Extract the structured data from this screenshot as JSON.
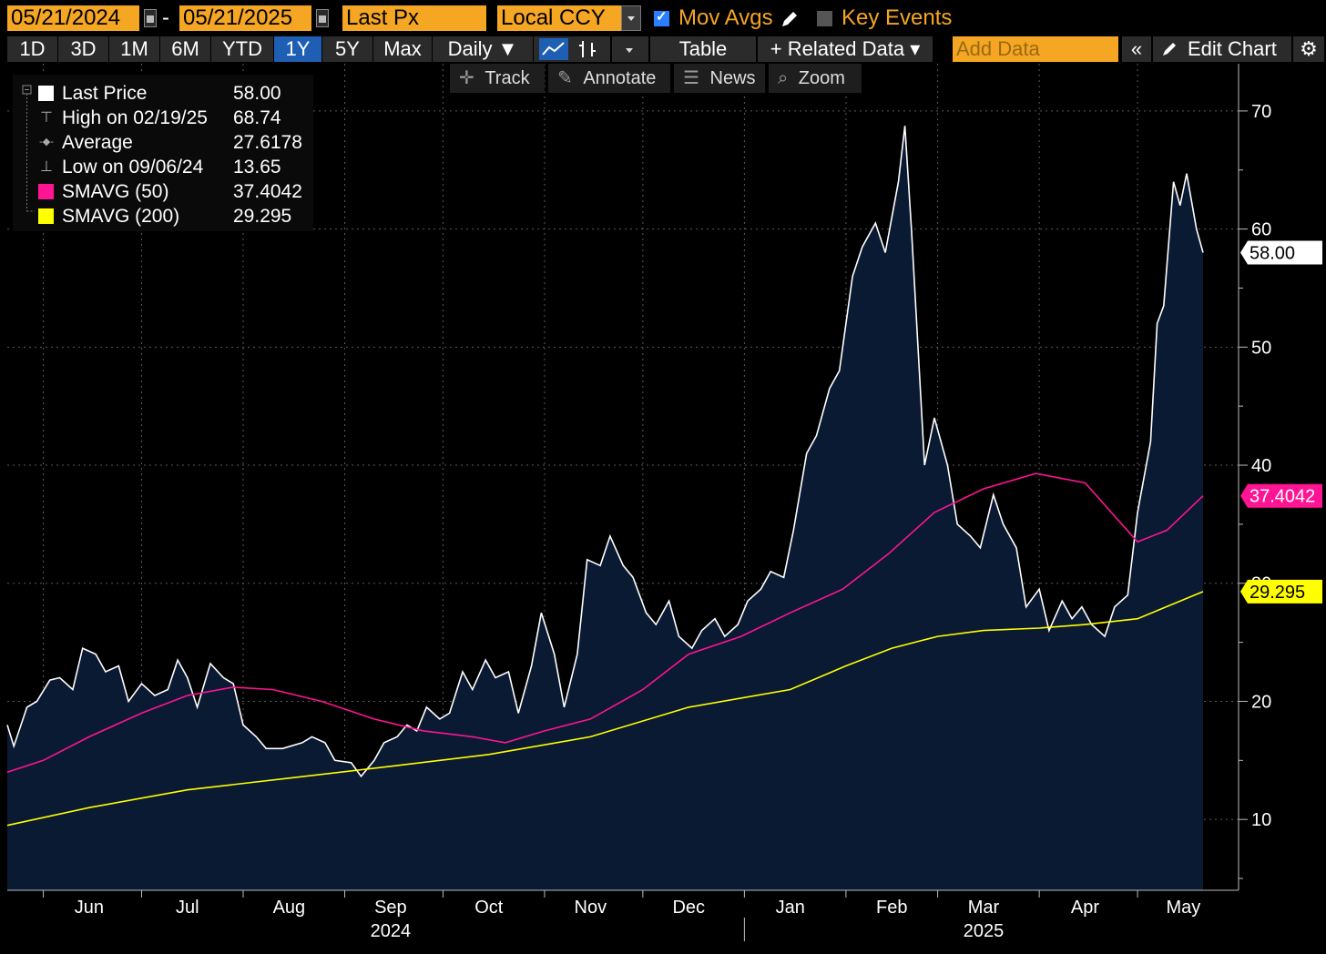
{
  "toolbar": {
    "start_date": "05/21/2024",
    "date_separator": "-",
    "end_date": "05/21/2025",
    "field": "Last Px",
    "currency": "Local CCY",
    "mov_avgs_label": "Mov Avgs",
    "key_events_label": "Key Events",
    "periods": [
      "1D",
      "3D",
      "1M",
      "6M",
      "YTD",
      "1Y",
      "5Y",
      "Max"
    ],
    "active_period": "1Y",
    "frequency": "Daily ▼",
    "table_label": "Table",
    "related_data_label": "+ Related Data ▾",
    "add_data_placeholder": "Add Data",
    "edit_chart_label": "Edit Chart",
    "collapse_icon": "double-chevron-left-icon",
    "settings_icon": "gear-icon"
  },
  "chart_tools": {
    "track": "Track",
    "annotate": "Annotate",
    "news": "News",
    "zoom": "Zoom"
  },
  "legend": [
    {
      "name": "Last Price",
      "value": "58.00",
      "swatch": "#ffffff"
    },
    {
      "name": "High on 02/19/25",
      "value": "68.74",
      "glyph": "⊤"
    },
    {
      "name": "Average",
      "value": "27.6178",
      "glyph": "-◆-"
    },
    {
      "name": "Low on 09/06/24",
      "value": "13.65",
      "glyph": "⊥"
    },
    {
      "name": "SMAVG (50)",
      "value": "37.4042",
      "swatch": "#ff1493"
    },
    {
      "name": "SMAVG (200)",
      "value": "29.295",
      "swatch": "#ffff00"
    }
  ],
  "chart_data": {
    "type": "line",
    "ylim": [
      4,
      74
    ],
    "y_ticks": [
      10,
      20,
      30,
      40,
      50,
      60,
      70
    ],
    "x_range": [
      "2024-05-21",
      "2025-05-21"
    ],
    "month_labels": [
      {
        "label": "Jun",
        "date": "2024-06-15"
      },
      {
        "label": "Jul",
        "date": "2024-07-15"
      },
      {
        "label": "Aug",
        "date": "2024-08-15"
      },
      {
        "label": "Sep",
        "date": "2024-09-15"
      },
      {
        "label": "Oct",
        "date": "2024-10-15"
      },
      {
        "label": "Nov",
        "date": "2024-11-15"
      },
      {
        "label": "Dec",
        "date": "2024-12-15"
      },
      {
        "label": "Jan",
        "date": "2025-01-15"
      },
      {
        "label": "Feb",
        "date": "2025-02-15"
      },
      {
        "label": "Mar",
        "date": "2025-03-15"
      },
      {
        "label": "Apr",
        "date": "2025-04-15"
      },
      {
        "label": "May",
        "date": "2025-05-15"
      }
    ],
    "year_labels": [
      {
        "label": "2024",
        "date": "2024-09-15"
      },
      {
        "label": "2025",
        "date": "2025-03-15"
      }
    ],
    "year_divider_date": "2025-01-01",
    "grid": true,
    "series": [
      {
        "name": "Last Price",
        "color": "#ffffff",
        "fill": "#0b1a33",
        "points": [
          [
            "2024-05-21",
            18.0
          ],
          [
            "2024-05-23",
            16.2
          ],
          [
            "2024-05-27",
            19.5
          ],
          [
            "2024-05-30",
            20.0
          ],
          [
            "2024-06-03",
            21.8
          ],
          [
            "2024-06-06",
            22.0
          ],
          [
            "2024-06-10",
            21.0
          ],
          [
            "2024-06-13",
            24.5
          ],
          [
            "2024-06-17",
            24.0
          ],
          [
            "2024-06-20",
            22.5
          ],
          [
            "2024-06-24",
            23.0
          ],
          [
            "2024-06-27",
            20.0
          ],
          [
            "2024-07-01",
            21.5
          ],
          [
            "2024-07-05",
            20.5
          ],
          [
            "2024-07-09",
            21.0
          ],
          [
            "2024-07-12",
            23.5
          ],
          [
            "2024-07-15",
            22.0
          ],
          [
            "2024-07-18",
            19.5
          ],
          [
            "2024-07-22",
            23.2
          ],
          [
            "2024-07-26",
            22.0
          ],
          [
            "2024-07-29",
            21.5
          ],
          [
            "2024-08-01",
            18.0
          ],
          [
            "2024-08-05",
            17.0
          ],
          [
            "2024-08-08",
            16.0
          ],
          [
            "2024-08-13",
            16.0
          ],
          [
            "2024-08-19",
            16.5
          ],
          [
            "2024-08-22",
            17.0
          ],
          [
            "2024-08-26",
            16.5
          ],
          [
            "2024-08-29",
            15.0
          ],
          [
            "2024-09-03",
            14.8
          ],
          [
            "2024-09-06",
            13.65
          ],
          [
            "2024-09-10",
            15.0
          ],
          [
            "2024-09-13",
            16.5
          ],
          [
            "2024-09-17",
            17.0
          ],
          [
            "2024-09-20",
            18.0
          ],
          [
            "2024-09-23",
            17.5
          ],
          [
            "2024-09-26",
            19.5
          ],
          [
            "2024-09-30",
            18.5
          ],
          [
            "2024-10-03",
            19.0
          ],
          [
            "2024-10-07",
            22.5
          ],
          [
            "2024-10-10",
            21.0
          ],
          [
            "2024-10-14",
            23.5
          ],
          [
            "2024-10-17",
            22.0
          ],
          [
            "2024-10-21",
            22.5
          ],
          [
            "2024-10-24",
            19.0
          ],
          [
            "2024-10-28",
            23.0
          ],
          [
            "2024-10-31",
            27.5
          ],
          [
            "2024-11-04",
            24.0
          ],
          [
            "2024-11-07",
            19.5
          ],
          [
            "2024-11-11",
            24.0
          ],
          [
            "2024-11-14",
            32.0
          ],
          [
            "2024-11-18",
            31.5
          ],
          [
            "2024-11-21",
            34.0
          ],
          [
            "2024-11-25",
            31.5
          ],
          [
            "2024-11-28",
            30.5
          ],
          [
            "2024-12-02",
            27.5
          ],
          [
            "2024-12-05",
            26.5
          ],
          [
            "2024-12-09",
            28.5
          ],
          [
            "2024-12-12",
            25.5
          ],
          [
            "2024-12-16",
            24.5
          ],
          [
            "2024-12-19",
            26.0
          ],
          [
            "2024-12-23",
            27.0
          ],
          [
            "2024-12-26",
            25.5
          ],
          [
            "2024-12-30",
            26.5
          ],
          [
            "2025-01-02",
            28.5
          ],
          [
            "2025-01-06",
            29.5
          ],
          [
            "2025-01-09",
            31.0
          ],
          [
            "2025-01-13",
            30.5
          ],
          [
            "2025-01-16",
            34.5
          ],
          [
            "2025-01-20",
            41.0
          ],
          [
            "2025-01-23",
            42.5
          ],
          [
            "2025-01-27",
            46.5
          ],
          [
            "2025-01-30",
            48.0
          ],
          [
            "2025-02-03",
            56.0
          ],
          [
            "2025-02-06",
            58.5
          ],
          [
            "2025-02-10",
            60.5
          ],
          [
            "2025-02-13",
            58.0
          ],
          [
            "2025-02-17",
            64.0
          ],
          [
            "2025-02-19",
            68.74
          ],
          [
            "2025-02-21",
            60.0
          ],
          [
            "2025-02-25",
            40.0
          ],
          [
            "2025-02-28",
            44.0
          ],
          [
            "2025-03-04",
            40.0
          ],
          [
            "2025-03-07",
            35.0
          ],
          [
            "2025-03-11",
            34.0
          ],
          [
            "2025-03-14",
            33.0
          ],
          [
            "2025-03-18",
            37.5
          ],
          [
            "2025-03-21",
            35.0
          ],
          [
            "2025-03-25",
            33.0
          ],
          [
            "2025-03-28",
            28.0
          ],
          [
            "2025-04-01",
            29.5
          ],
          [
            "2025-04-04",
            26.0
          ],
          [
            "2025-04-08",
            28.5
          ],
          [
            "2025-04-11",
            27.0
          ],
          [
            "2025-04-14",
            28.0
          ],
          [
            "2025-04-17",
            26.5
          ],
          [
            "2025-04-21",
            25.5
          ],
          [
            "2025-04-24",
            28.0
          ],
          [
            "2025-04-28",
            29.0
          ],
          [
            "2025-05-01",
            36.0
          ],
          [
            "2025-05-05",
            42.0
          ],
          [
            "2025-05-07",
            52.0
          ],
          [
            "2025-05-09",
            53.5
          ],
          [
            "2025-05-12",
            64.0
          ],
          [
            "2025-05-14",
            62.0
          ],
          [
            "2025-05-16",
            64.7
          ],
          [
            "2025-05-19",
            60.0
          ],
          [
            "2025-05-21",
            58.0
          ]
        ]
      },
      {
        "name": "SMAVG (50)",
        "color": "#ff1493",
        "points": [
          [
            "2024-05-21",
            14.0
          ],
          [
            "2024-06-01",
            15.0
          ],
          [
            "2024-06-15",
            17.0
          ],
          [
            "2024-07-01",
            19.0
          ],
          [
            "2024-07-15",
            20.5
          ],
          [
            "2024-07-29",
            21.2
          ],
          [
            "2024-08-10",
            21.0
          ],
          [
            "2024-08-25",
            20.0
          ],
          [
            "2024-09-10",
            18.5
          ],
          [
            "2024-09-25",
            17.5
          ],
          [
            "2024-10-10",
            17.0
          ],
          [
            "2024-10-20",
            16.5
          ],
          [
            "2024-11-01",
            17.5
          ],
          [
            "2024-11-15",
            18.5
          ],
          [
            "2024-12-01",
            21.0
          ],
          [
            "2024-12-15",
            24.0
          ],
          [
            "2024-12-31",
            25.5
          ],
          [
            "2025-01-15",
            27.5
          ],
          [
            "2025-01-31",
            29.5
          ],
          [
            "2025-02-14",
            32.5
          ],
          [
            "2025-02-28",
            36.0
          ],
          [
            "2025-03-15",
            38.0
          ],
          [
            "2025-03-31",
            39.3
          ],
          [
            "2025-04-15",
            38.5
          ],
          [
            "2025-05-01",
            33.5
          ],
          [
            "2025-05-10",
            34.5
          ],
          [
            "2025-05-21",
            37.4042
          ]
        ]
      },
      {
        "name": "SMAVG (200)",
        "color": "#ffff00",
        "points": [
          [
            "2024-05-21",
            9.5
          ],
          [
            "2024-06-15",
            11.0
          ],
          [
            "2024-07-15",
            12.5
          ],
          [
            "2024-08-15",
            13.5
          ],
          [
            "2024-09-15",
            14.5
          ],
          [
            "2024-10-15",
            15.5
          ],
          [
            "2024-11-15",
            17.0
          ],
          [
            "2024-12-15",
            19.5
          ],
          [
            "2025-01-15",
            21.0
          ],
          [
            "2025-02-01",
            23.0
          ],
          [
            "2025-02-15",
            24.5
          ],
          [
            "2025-03-01",
            25.5
          ],
          [
            "2025-03-15",
            26.0
          ],
          [
            "2025-04-01",
            26.2
          ],
          [
            "2025-04-15",
            26.5
          ],
          [
            "2025-05-01",
            27.0
          ],
          [
            "2025-05-21",
            29.295
          ]
        ]
      }
    ],
    "price_tags": [
      {
        "label": "58.00",
        "value": 58.0,
        "bg": "#ffffff",
        "fg": "#000000"
      },
      {
        "label": "37.4042",
        "value": 37.4042,
        "bg": "#ff1493",
        "fg": "#ffffff"
      },
      {
        "label": "29.295",
        "value": 29.295,
        "bg": "#ffff00",
        "fg": "#000000"
      }
    ]
  }
}
